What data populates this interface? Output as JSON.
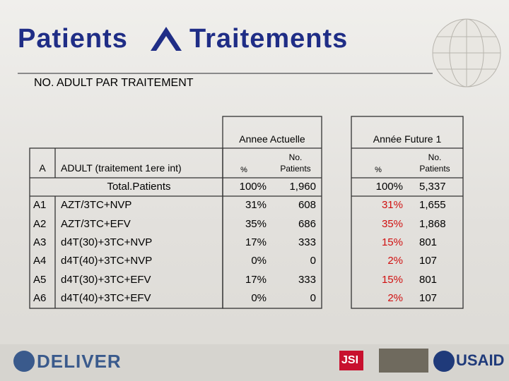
{
  "title": {
    "left": "Patients",
    "right": "Traitements"
  },
  "subtitle": "NO. ADULT PAR TRAITEMENT",
  "table": {
    "groups": [
      "Annee Actuelle",
      "Année Future 1"
    ],
    "header": [
      "A",
      "ADULT (traitement 1ere int)",
      "%",
      "No. Patients",
      "%",
      "No. Patients"
    ],
    "total": [
      "Total.Patients",
      "100%",
      "1,960",
      "100%",
      "5,337"
    ],
    "rows": [
      [
        "A1",
        "AZT/3TC+NVP",
        "31%",
        "608",
        "31%",
        "1,655"
      ],
      [
        "A2",
        "AZT/3TC+EFV",
        "35%",
        "686",
        "35%",
        "1,868"
      ],
      [
        "A3",
        "d4T(30)+3TC+NVP",
        "17%",
        "333",
        "15%",
        "801"
      ],
      [
        "A4",
        "d4T(40)+3TC+NVP",
        "0%",
        "0",
        "2%",
        "107"
      ],
      [
        "A5",
        "d4T(30)+3TC+EFV",
        "17%",
        "333",
        "15%",
        "801"
      ],
      [
        "A6",
        "d4T(40)+3TC+EFV",
        "0%",
        "0",
        "2%",
        "107"
      ]
    ]
  },
  "footer": {
    "logos": [
      "DELIVER",
      "JSI",
      "USAID"
    ]
  }
}
